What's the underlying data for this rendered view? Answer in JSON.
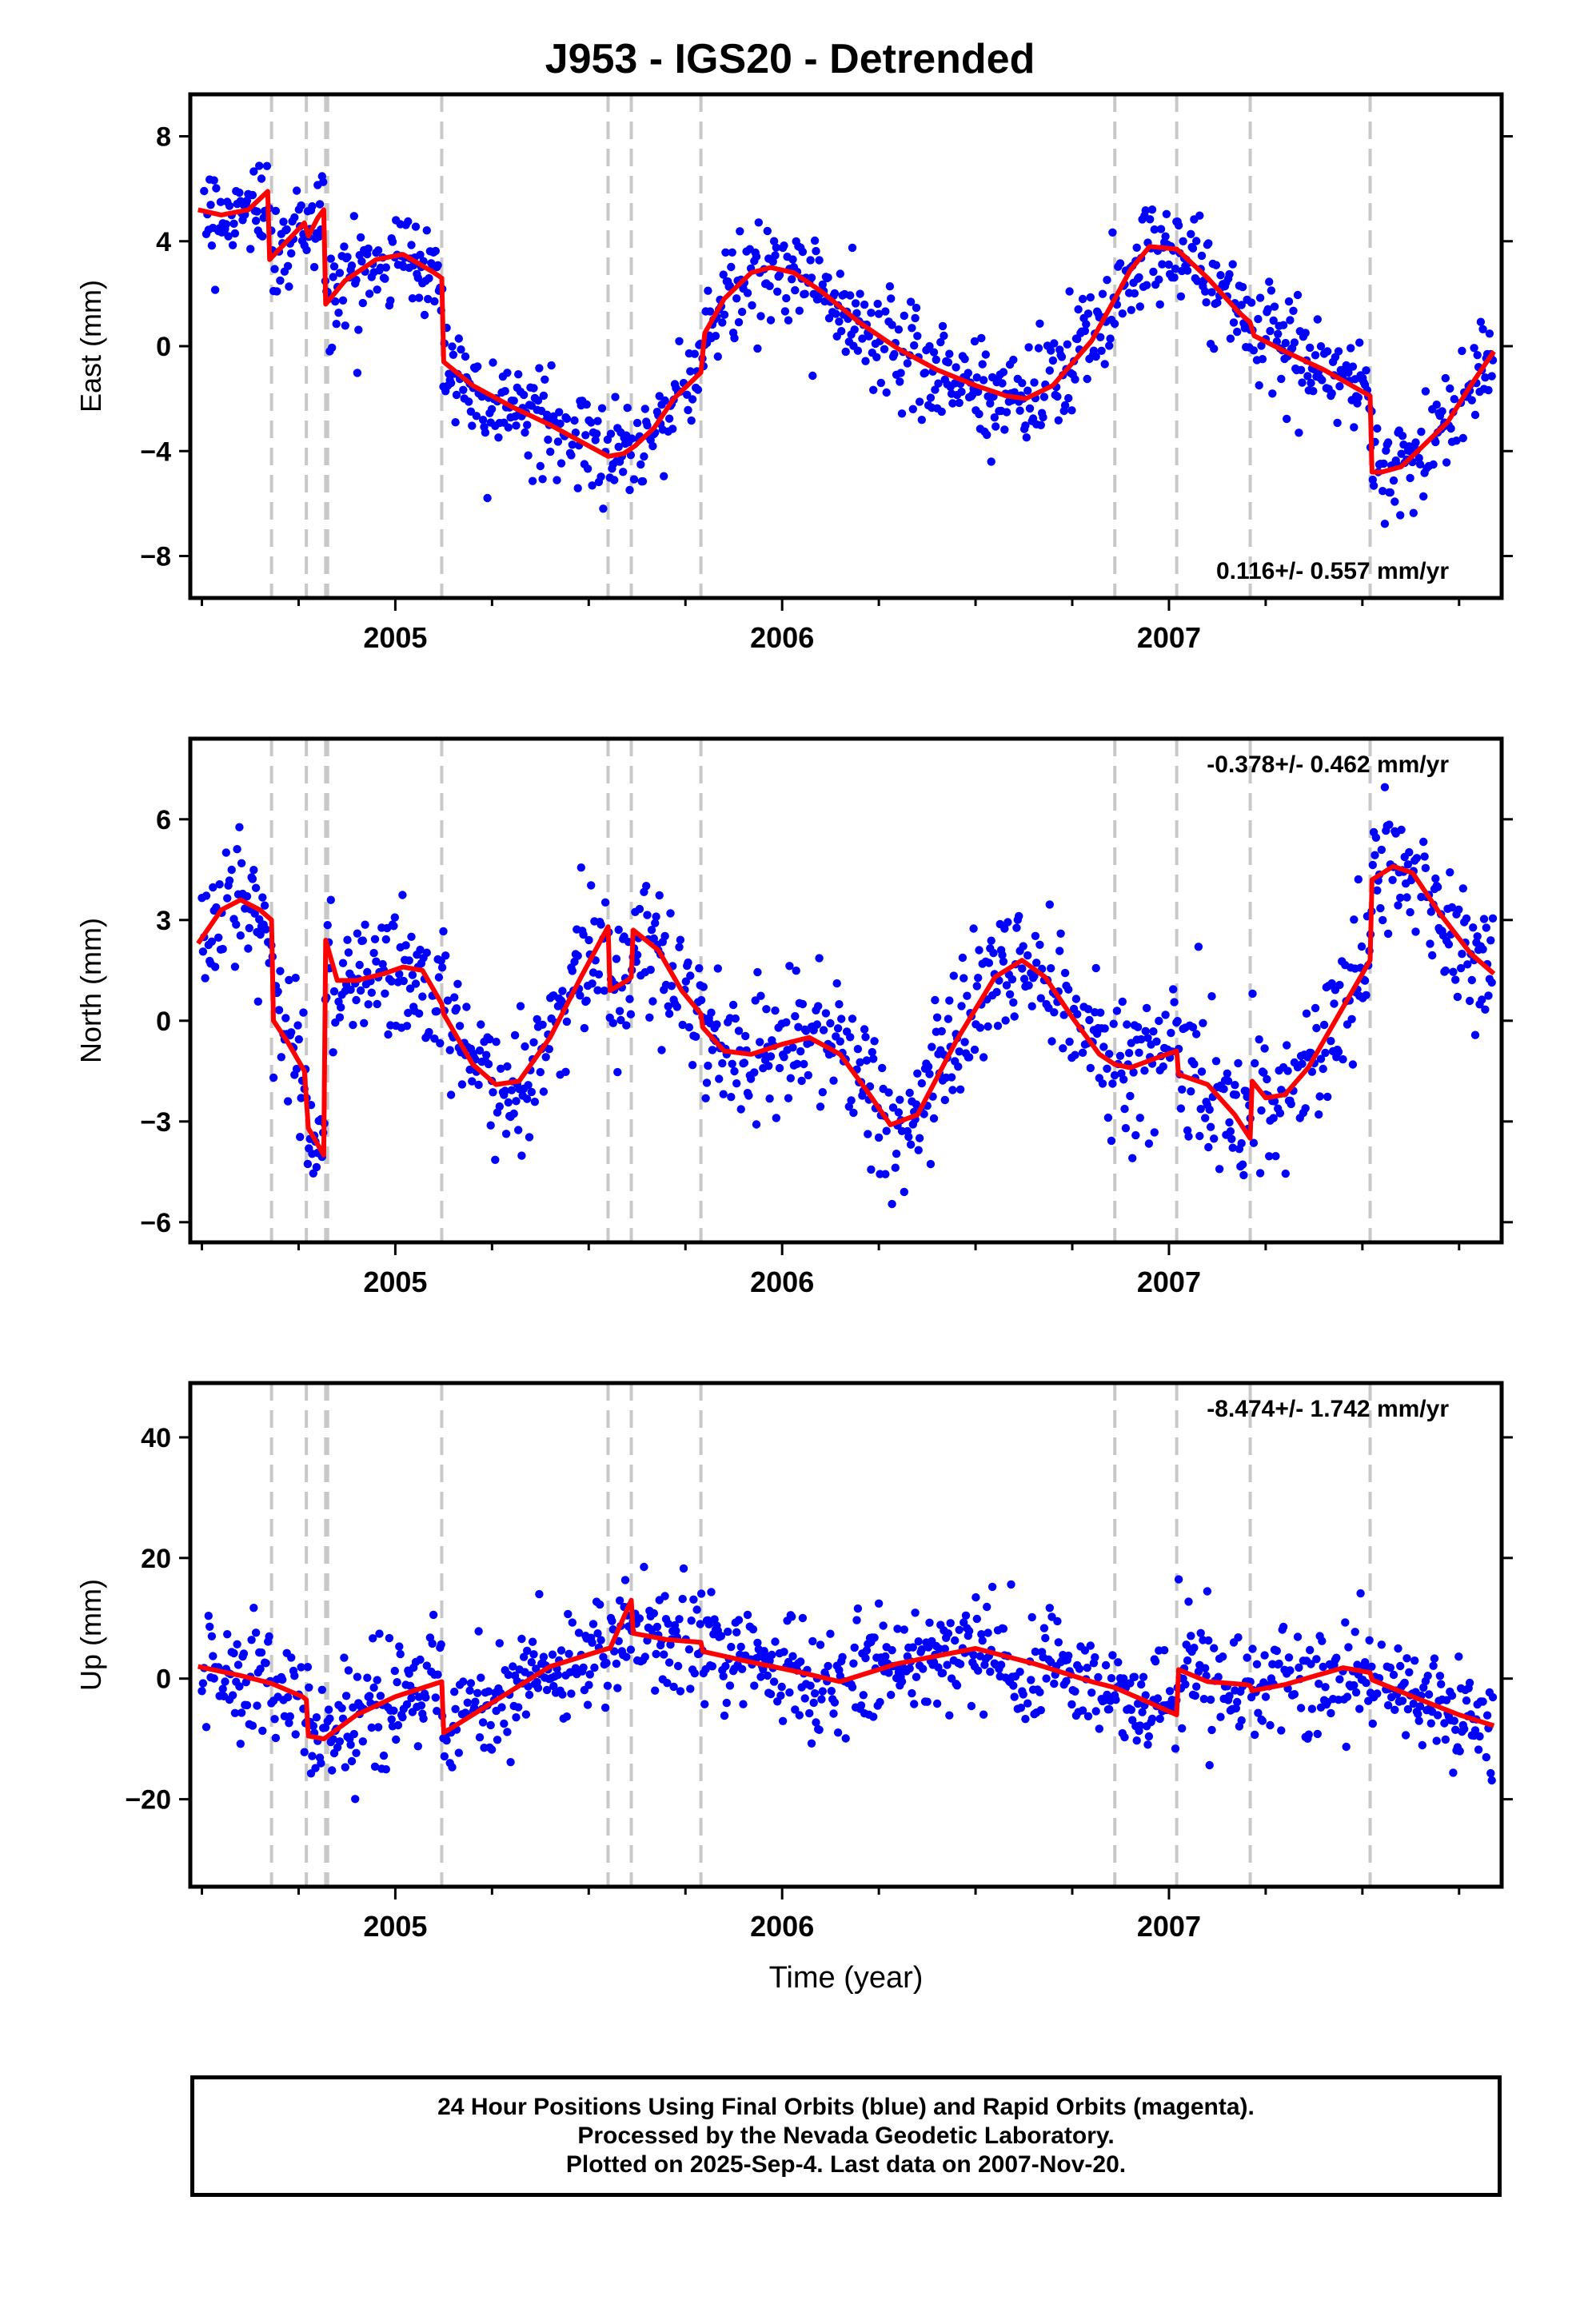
{
  "title": "J953 - IGS20 - Detrended",
  "x_axis_label": "Time (year)",
  "footer": {
    "line1": "24 Hour Positions Using Final Orbits (blue) and Rapid Orbits (magenta).",
    "line2": "Processed by the Nevada Geodetic Laboratory.",
    "line3": "Plotted on 2025-Sep-4. Last data on 2007-Nov-20."
  },
  "colors": {
    "points": "#0000ff",
    "model": "#ff0000",
    "breaks": "#c8c8c8",
    "frame": "#000000"
  },
  "chart_data": [
    {
      "type": "scatter",
      "component": "East",
      "ylabel": "East (mm)",
      "rate_text": "0.116+/- 0.557 mm/yr",
      "rate_position": "bottom-right",
      "xlim": [
        2004.47,
        2007.86
      ],
      "ylim": [
        -9.6,
        9.6
      ],
      "yticks": [
        -8,
        -4,
        0,
        4,
        8
      ],
      "xticks": [
        2005,
        2006,
        2007
      ],
      "break_lines": [
        2004.68,
        2004.77,
        2004.82,
        2004.825,
        2005.12,
        2005.55,
        2005.61,
        2005.79,
        2006.86,
        2007.02,
        2007.21,
        2007.52
      ],
      "model_line": {
        "x": [
          2004.49,
          2004.55,
          2004.62,
          2004.67,
          2004.675,
          2004.72,
          2004.765,
          2004.775,
          2004.8,
          2004.815,
          2004.82,
          2004.87,
          2004.95,
          2005.02,
          2005.1,
          2005.12,
          2005.125,
          2005.2,
          2005.3,
          2005.4,
          2005.5,
          2005.55,
          2005.59,
          2005.62,
          2005.67,
          2005.72,
          2005.79,
          2005.8,
          2005.85,
          2005.92,
          2005.97,
          2006.03,
          2006.1,
          2006.2,
          2006.3,
          2006.4,
          2006.5,
          2006.58,
          2006.63,
          2006.7,
          2006.8,
          2006.86,
          2006.9,
          2006.95,
          2007.02,
          2007.1,
          2007.18,
          2007.21,
          2007.22,
          2007.3,
          2007.4,
          2007.52,
          2007.525,
          2007.55,
          2007.6,
          2007.65,
          2007.72,
          2007.78,
          2007.84
        ],
        "y": [
          5.2,
          5.0,
          5.2,
          5.9,
          3.3,
          4.0,
          4.7,
          4.2,
          4.9,
          5.2,
          1.6,
          2.5,
          3.3,
          3.5,
          2.8,
          2.6,
          -0.6,
          -1.5,
          -2.3,
          -3.0,
          -3.8,
          -4.2,
          -4.1,
          -3.8,
          -3.1,
          -2.0,
          -1.0,
          0.5,
          1.8,
          2.8,
          3.0,
          2.8,
          2.1,
          0.9,
          -0.1,
          -0.9,
          -1.5,
          -1.9,
          -2.0,
          -1.5,
          0.2,
          1.8,
          2.9,
          3.8,
          3.7,
          2.6,
          1.3,
          0.9,
          0.4,
          -0.2,
          -0.9,
          -1.9,
          -4.8,
          -4.8,
          -4.6,
          -3.9,
          -2.9,
          -1.5,
          -0.2
        ]
      }
    },
    {
      "type": "scatter",
      "component": "North",
      "ylabel": "North (mm)",
      "rate_text": "-0.378+/- 0.462 mm/yr",
      "rate_position": "top-right",
      "xlim": [
        2004.47,
        2007.86
      ],
      "ylim": [
        -6.6,
        8.4
      ],
      "yticks": [
        -6,
        -3,
        0,
        3,
        6
      ],
      "xticks": [
        2005,
        2006,
        2007
      ],
      "break_lines": [
        2004.68,
        2004.77,
        2004.82,
        2004.825,
        2005.12,
        2005.55,
        2005.61,
        2005.79,
        2006.86,
        2007.02,
        2007.21,
        2007.52
      ],
      "model_line": {
        "x": [
          2004.49,
          2004.55,
          2004.6,
          2004.65,
          2004.68,
          2004.685,
          2004.72,
          2004.765,
          2004.775,
          2004.815,
          2004.82,
          2004.85,
          2004.9,
          2004.97,
          2005.02,
          2005.07,
          2005.12,
          2005.125,
          2005.2,
          2005.26,
          2005.32,
          2005.4,
          2005.48,
          2005.55,
          2005.555,
          2005.6,
          2005.61,
          2005.615,
          2005.68,
          2005.74,
          2005.79,
          2005.795,
          2005.85,
          2005.92,
          2006.0,
          2006.07,
          2006.15,
          2006.22,
          2006.28,
          2006.35,
          2006.45,
          2006.55,
          2006.62,
          2006.68,
          2006.75,
          2006.82,
          2006.86,
          2006.9,
          2006.97,
          2007.02,
          2007.025,
          2007.1,
          2007.17,
          2007.21,
          2007.215,
          2007.25,
          2007.3,
          2007.36,
          2007.44,
          2007.52,
          2007.525,
          2007.58,
          2007.63,
          2007.7,
          2007.78,
          2007.84
        ],
        "y": [
          2.3,
          3.3,
          3.6,
          3.3,
          3.0,
          0.0,
          -0.6,
          -1.5,
          -3.2,
          -4.0,
          2.4,
          1.2,
          1.2,
          1.4,
          1.6,
          1.5,
          0.5,
          0.2,
          -1.3,
          -1.9,
          -1.8,
          -0.5,
          1.3,
          2.8,
          0.9,
          1.2,
          1.3,
          2.7,
          2.1,
          0.9,
          0.2,
          -0.2,
          -0.9,
          -1.0,
          -0.7,
          -0.5,
          -1.0,
          -2.1,
          -3.1,
          -2.8,
          -0.6,
          1.3,
          1.8,
          1.3,
          0.1,
          -1.0,
          -1.3,
          -1.4,
          -1.1,
          -0.9,
          -1.6,
          -1.9,
          -2.8,
          -3.5,
          -1.8,
          -2.3,
          -2.2,
          -1.4,
          0.2,
          1.8,
          4.2,
          4.6,
          4.4,
          3.2,
          2.0,
          1.4
        ]
      }
    },
    {
      "type": "scatter",
      "component": "Up",
      "ylabel": "Up (mm)",
      "rate_text": "-8.474+/- 1.742 mm/yr",
      "rate_position": "top-right",
      "xlim": [
        2004.47,
        2007.86
      ],
      "ylim": [
        -34.5,
        49
      ],
      "yticks": [
        -20,
        0,
        20,
        40
      ],
      "xticks": [
        2005,
        2006,
        2007
      ],
      "break_lines": [
        2004.68,
        2004.77,
        2004.82,
        2004.825,
        2005.12,
        2005.55,
        2005.61,
        2005.79,
        2006.86,
        2007.02,
        2007.21,
        2007.52
      ],
      "model_line": {
        "x": [
          2004.49,
          2004.6,
          2004.68,
          2004.76,
          2004.77,
          2004.775,
          2004.815,
          2004.82,
          2004.9,
          2005.0,
          2005.12,
          2005.125,
          2005.25,
          2005.4,
          2005.55,
          2005.555,
          2005.61,
          2005.615,
          2005.7,
          2005.79,
          2005.795,
          2005.9,
          2006.05,
          2006.15,
          2006.3,
          2006.5,
          2006.65,
          2006.8,
          2006.86,
          2006.95,
          2007.02,
          2007.025,
          2007.1,
          2007.2,
          2007.21,
          2007.215,
          2007.3,
          2007.45,
          2007.52,
          2007.525,
          2007.65,
          2007.75,
          2007.84
        ],
        "y": [
          2.0,
          0.5,
          -0.8,
          -3.0,
          -3.5,
          -9.5,
          -10.0,
          -9.8,
          -6.0,
          -3.0,
          -0.5,
          -9.0,
          -4.0,
          2.0,
          5.0,
          5.0,
          13.0,
          7.5,
          6.5,
          6.0,
          4.5,
          3.0,
          1.0,
          -0.5,
          2.5,
          5.0,
          2.5,
          -0.5,
          -1.5,
          -4.0,
          -6.0,
          1.5,
          -0.5,
          -1.0,
          -1.2,
          -2.0,
          -1.0,
          1.8,
          1.0,
          -0.2,
          -3.5,
          -6.0,
          -7.8
        ]
      }
    }
  ]
}
